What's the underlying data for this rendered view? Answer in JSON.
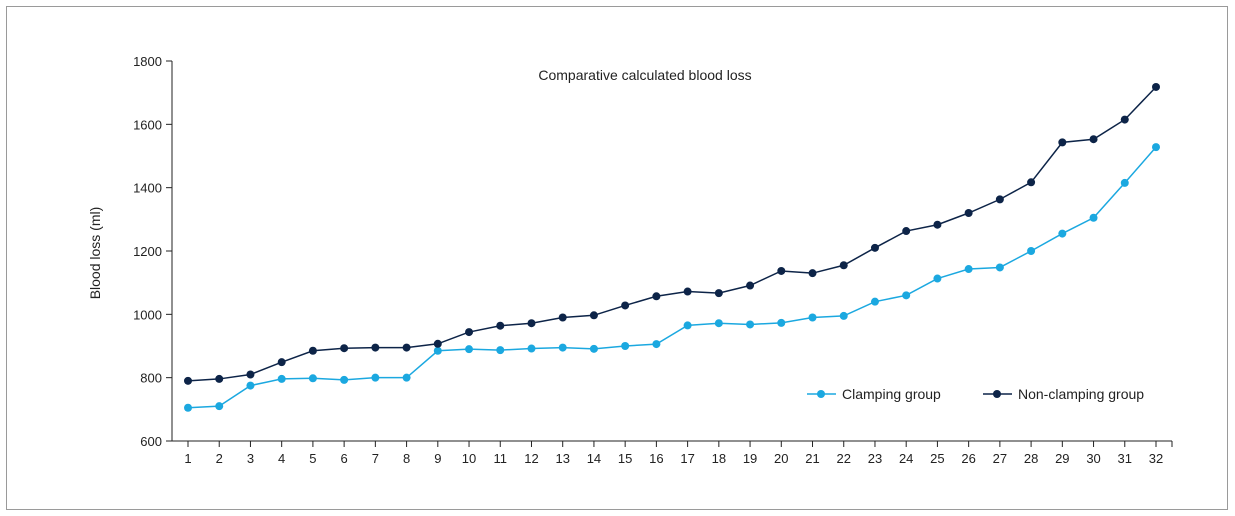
{
  "chart_data": {
    "type": "line",
    "title": "Comparative calculated blood loss",
    "xlabel": "",
    "ylabel": "Blood loss (ml)",
    "ylim": [
      600,
      1800
    ],
    "yticks": [
      600,
      800,
      1000,
      1200,
      1400,
      1600,
      1800
    ],
    "grid": false,
    "legend_position": "bottom-right",
    "categories": [
      "1",
      "2",
      "3",
      "4",
      "5",
      "6",
      "7",
      "8",
      "9",
      "10",
      "11",
      "12",
      "13",
      "14",
      "15",
      "16",
      "17",
      "18",
      "19",
      "20",
      "21",
      "22",
      "23",
      "24",
      "25",
      "26",
      "27",
      "28",
      "29",
      "30",
      "31",
      "32"
    ],
    "series": [
      {
        "name": "Clamping group",
        "color": "#1ba8e0",
        "values": [
          705,
          710,
          775,
          796,
          798,
          793,
          800,
          800,
          885,
          890,
          887,
          892,
          895,
          891,
          900,
          906,
          965,
          972,
          968,
          973,
          990,
          995,
          1040,
          1060,
          1113,
          1143,
          1148,
          1200,
          1255,
          1305,
          1415,
          1528
        ]
      },
      {
        "name": "Non-clamping group",
        "color": "#0d2448",
        "values": [
          790,
          796,
          810,
          849,
          885,
          893,
          895,
          895,
          907,
          944,
          964,
          972,
          990,
          997,
          1028,
          1057,
          1072,
          1067,
          1091,
          1137,
          1130,
          1155,
          1210,
          1263,
          1283,
          1320,
          1363,
          1417,
          1543,
          1553,
          1615,
          1718
        ]
      }
    ]
  }
}
